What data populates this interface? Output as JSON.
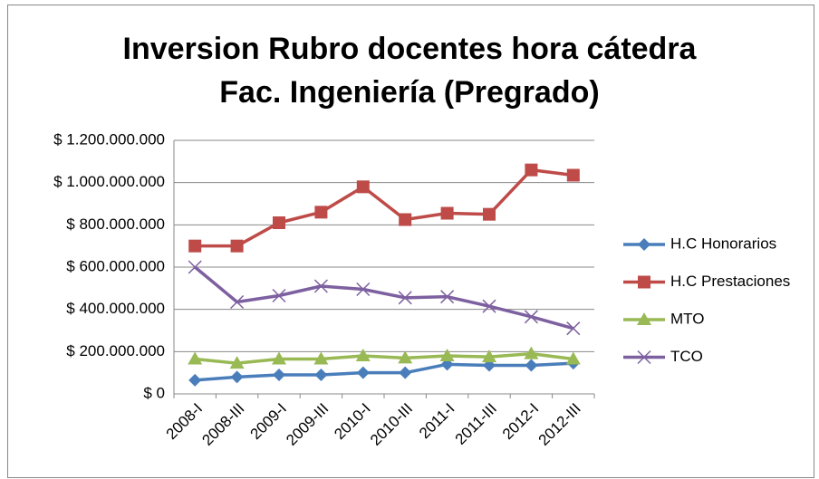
{
  "chart_data": {
    "type": "line",
    "title": [
      "Inversion Rubro docentes hora cátedra",
      "Fac. Ingeniería (Pregrado)"
    ],
    "categories": [
      "2008-I",
      "2008-III",
      "2009-I",
      "2009-III",
      "2010-I",
      "2010-III",
      "2011-I",
      "2011-III",
      "2012-I",
      "2012-III"
    ],
    "series": [
      {
        "name": "H.C Honorarios",
        "color": "#4a7ebb",
        "marker": "diamond",
        "values": [
          65000000,
          80000000,
          90000000,
          90000000,
          100000000,
          100000000,
          140000000,
          135000000,
          135000000,
          145000000
        ]
      },
      {
        "name": "H.C Prestaciones",
        "color": "#be4b48",
        "marker": "square",
        "values": [
          700000000,
          700000000,
          810000000,
          860000000,
          980000000,
          825000000,
          855000000,
          850000000,
          1060000000,
          1035000000
        ]
      },
      {
        "name": "MTO",
        "color": "#98b954",
        "marker": "triangle",
        "values": [
          165000000,
          145000000,
          165000000,
          165000000,
          180000000,
          170000000,
          180000000,
          175000000,
          190000000,
          165000000
        ]
      },
      {
        "name": "TCO",
        "color": "#7d60a0",
        "marker": "x",
        "values": [
          600000000,
          435000000,
          465000000,
          510000000,
          495000000,
          455000000,
          460000000,
          415000000,
          365000000,
          310000000
        ]
      }
    ],
    "ylim": [
      0,
      1200000000
    ],
    "yticks": [
      {
        "value": 0,
        "label": "$ 0"
      },
      {
        "value": 200000000,
        "label": "$ 200.000.000"
      },
      {
        "value": 400000000,
        "label": "$ 400.000.000"
      },
      {
        "value": 600000000,
        "label": "$ 600.000.000"
      },
      {
        "value": 800000000,
        "label": "$ 800.000.000"
      },
      {
        "value": 1000000000,
        "label": "$ 1.000.000.000"
      },
      {
        "value": 1200000000,
        "label": "$ 1.200.000.000"
      }
    ],
    "grid": true,
    "legend": "right"
  }
}
